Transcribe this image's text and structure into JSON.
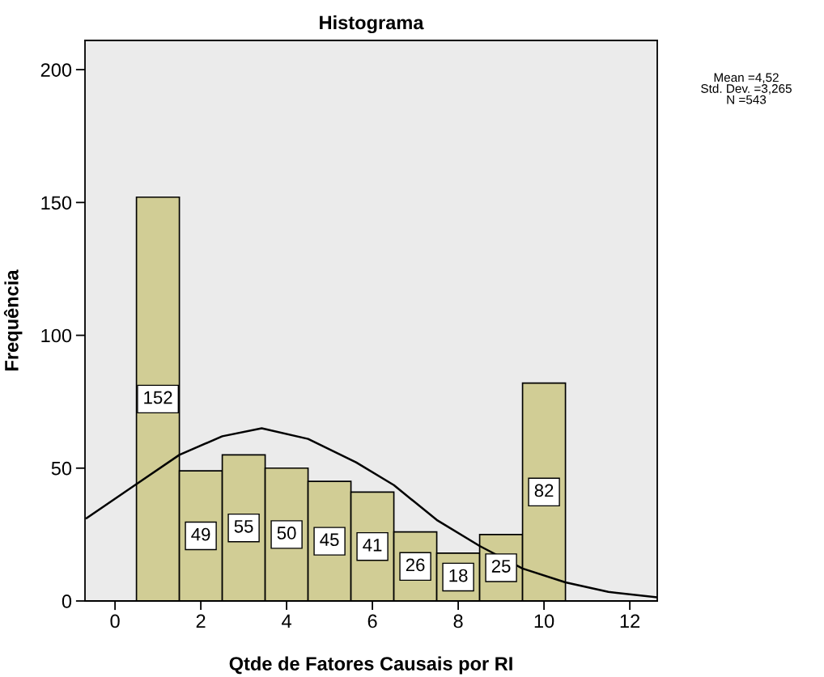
{
  "chart_data": {
    "type": "histogram",
    "title": "Histograma",
    "xlabel": "Qtde de Fatores Causais por RI",
    "ylabel": "Frequência",
    "bins": [
      0.5,
      1.5,
      2.5,
      3.5,
      4.5,
      5.5,
      6.5,
      7.5,
      8.5,
      9.5,
      10.5
    ],
    "values": [
      152,
      49,
      55,
      50,
      45,
      41,
      26,
      18,
      25,
      82
    ],
    "color": "#d1cd95",
    "value_labels": [
      "152",
      "49",
      "55",
      "50",
      "45",
      "41",
      "26",
      "18",
      "25",
      "82"
    ],
    "series": [
      {
        "type": "line",
        "color": "#000000",
        "x": [
          -0.66,
          0.5,
          1.5,
          2.5,
          3.42,
          4.5,
          5.62,
          6.5,
          7.5,
          8.5,
          9.5,
          10.5,
          11.5,
          12.64
        ],
        "values": [
          31.2,
          44,
          55,
          62,
          65,
          61,
          52.2,
          43.6,
          30.5,
          20.7,
          12.2,
          7.0,
          3.4,
          1.4
        ]
      }
    ],
    "xlim": [
      -0.7,
      12.64
    ],
    "ylim": [
      0,
      211
    ],
    "xticks": [
      0,
      2,
      4,
      6,
      8,
      10,
      12
    ],
    "yticks": [
      0,
      50,
      100,
      150,
      200
    ],
    "grid": false,
    "legend": false,
    "annotations": [
      "Mean =4,52",
      "Std. Dev. =3,265",
      "N =543"
    ]
  }
}
